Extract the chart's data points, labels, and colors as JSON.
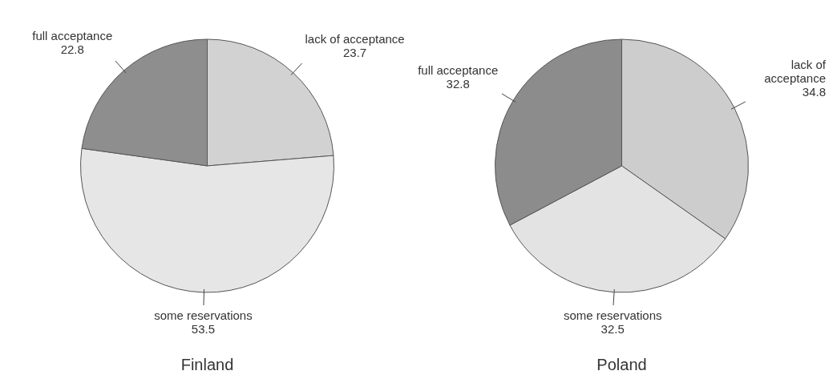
{
  "chart_data": [
    {
      "type": "pie",
      "title": "Finland",
      "categories": [
        "lack of acceptance",
        "some reservations",
        "full acceptance"
      ],
      "values": [
        23.7,
        53.5,
        22.8
      ],
      "colors": [
        "#d2d2d2",
        "#e6e6e6",
        "#8e8e8e"
      ],
      "data_labels": true,
      "legend": false
    },
    {
      "type": "pie",
      "title": "Poland",
      "categories": [
        "lack of acceptance",
        "some reservations",
        "full acceptance"
      ],
      "values": [
        34.8,
        32.5,
        32.8
      ],
      "colors": [
        "#cdcdcd",
        "#e3e3e3",
        "#8c8c8c"
      ],
      "data_labels": true,
      "legend": false
    }
  ]
}
